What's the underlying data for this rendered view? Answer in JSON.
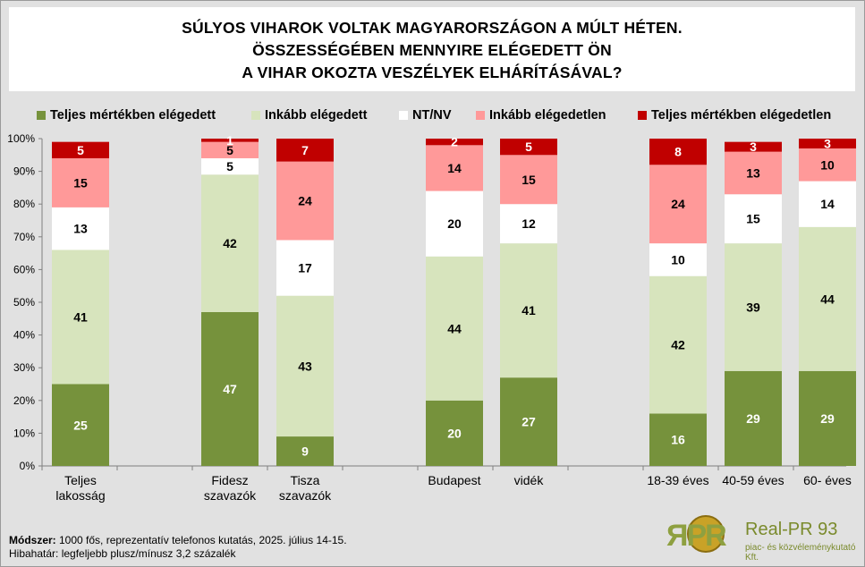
{
  "title": [
    "SÚLYOS VIHAROK VOLTAK MAGYARORSZÁGON A MÚLT HÉTEN.",
    "ÖSSZESSÉGÉBEN MENNYIRE ELÉGEDETT ÖN",
    "A VIHAR OKOZTA VESZÉLYEK ELHÁRÍTÁSÁVAL?"
  ],
  "legend": [
    {
      "label": "Teljes mértékben elégedett",
      "color": "#76923c"
    },
    {
      "label": "Inkább elégedett",
      "color": "#d7e4bd"
    },
    {
      "label": "NT/NV",
      "color": "#ffffff"
    },
    {
      "label": "Inkább elégedetlen",
      "color": "#ff9999"
    },
    {
      "label": "Teljes mértékben elégedetlen",
      "color": "#c00000"
    }
  ],
  "chart_data": {
    "type": "bar",
    "stacked": true,
    "categories": [
      "Teljes lakosság",
      "Fidesz szavazók",
      "Tisza szavazók",
      "Budapest",
      "vidék",
      "18-39 éves",
      "40-59 éves",
      "60-  éves"
    ],
    "category_groups": [
      [
        0
      ],
      [
        1,
        2
      ],
      [
        3,
        4
      ],
      [
        5,
        6,
        7
      ]
    ],
    "series": [
      {
        "name": "Teljes mértékben elégedett",
        "color": "#76923c",
        "label_color": "#ffffff",
        "values": [
          25,
          47,
          9,
          20,
          27,
          16,
          29,
          29
        ]
      },
      {
        "name": "Inkább elégedett",
        "color": "#d7e4bd",
        "label_color": "#000000",
        "values": [
          41,
          42,
          43,
          44,
          41,
          42,
          39,
          44
        ]
      },
      {
        "name": "NT/NV",
        "color": "#ffffff",
        "label_color": "#000000",
        "values": [
          13,
          5,
          17,
          20,
          12,
          10,
          15,
          14
        ]
      },
      {
        "name": "Inkább elégedetlen",
        "color": "#ff9999",
        "label_color": "#000000",
        "values": [
          15,
          5,
          24,
          14,
          15,
          24,
          13,
          10
        ]
      },
      {
        "name": "Teljes mértékben elégedetlen",
        "color": "#c00000",
        "label_color": "#ffffff",
        "values": [
          5,
          1,
          7,
          2,
          5,
          8,
          3,
          3
        ]
      }
    ],
    "ylim": [
      0,
      100
    ],
    "yticks": [
      "0%",
      "10%",
      "20%",
      "30%",
      "40%",
      "50%",
      "60%",
      "70%",
      "80%",
      "90%",
      "100%"
    ],
    "grid": false,
    "legend_position": "top"
  },
  "footer": {
    "method_label": "Módszer:",
    "method_text": " 1000 fős, reprezentatív telefonos kutatás, 2025. július 14-15.",
    "error_text": "Hibahatár: legfeljebb plusz/mínusz 3,2 százalék"
  },
  "logo": {
    "mark": "ЯPR",
    "name": "Real-PR 93",
    "tagline": "piac- és közvéleménykutató Kft."
  }
}
